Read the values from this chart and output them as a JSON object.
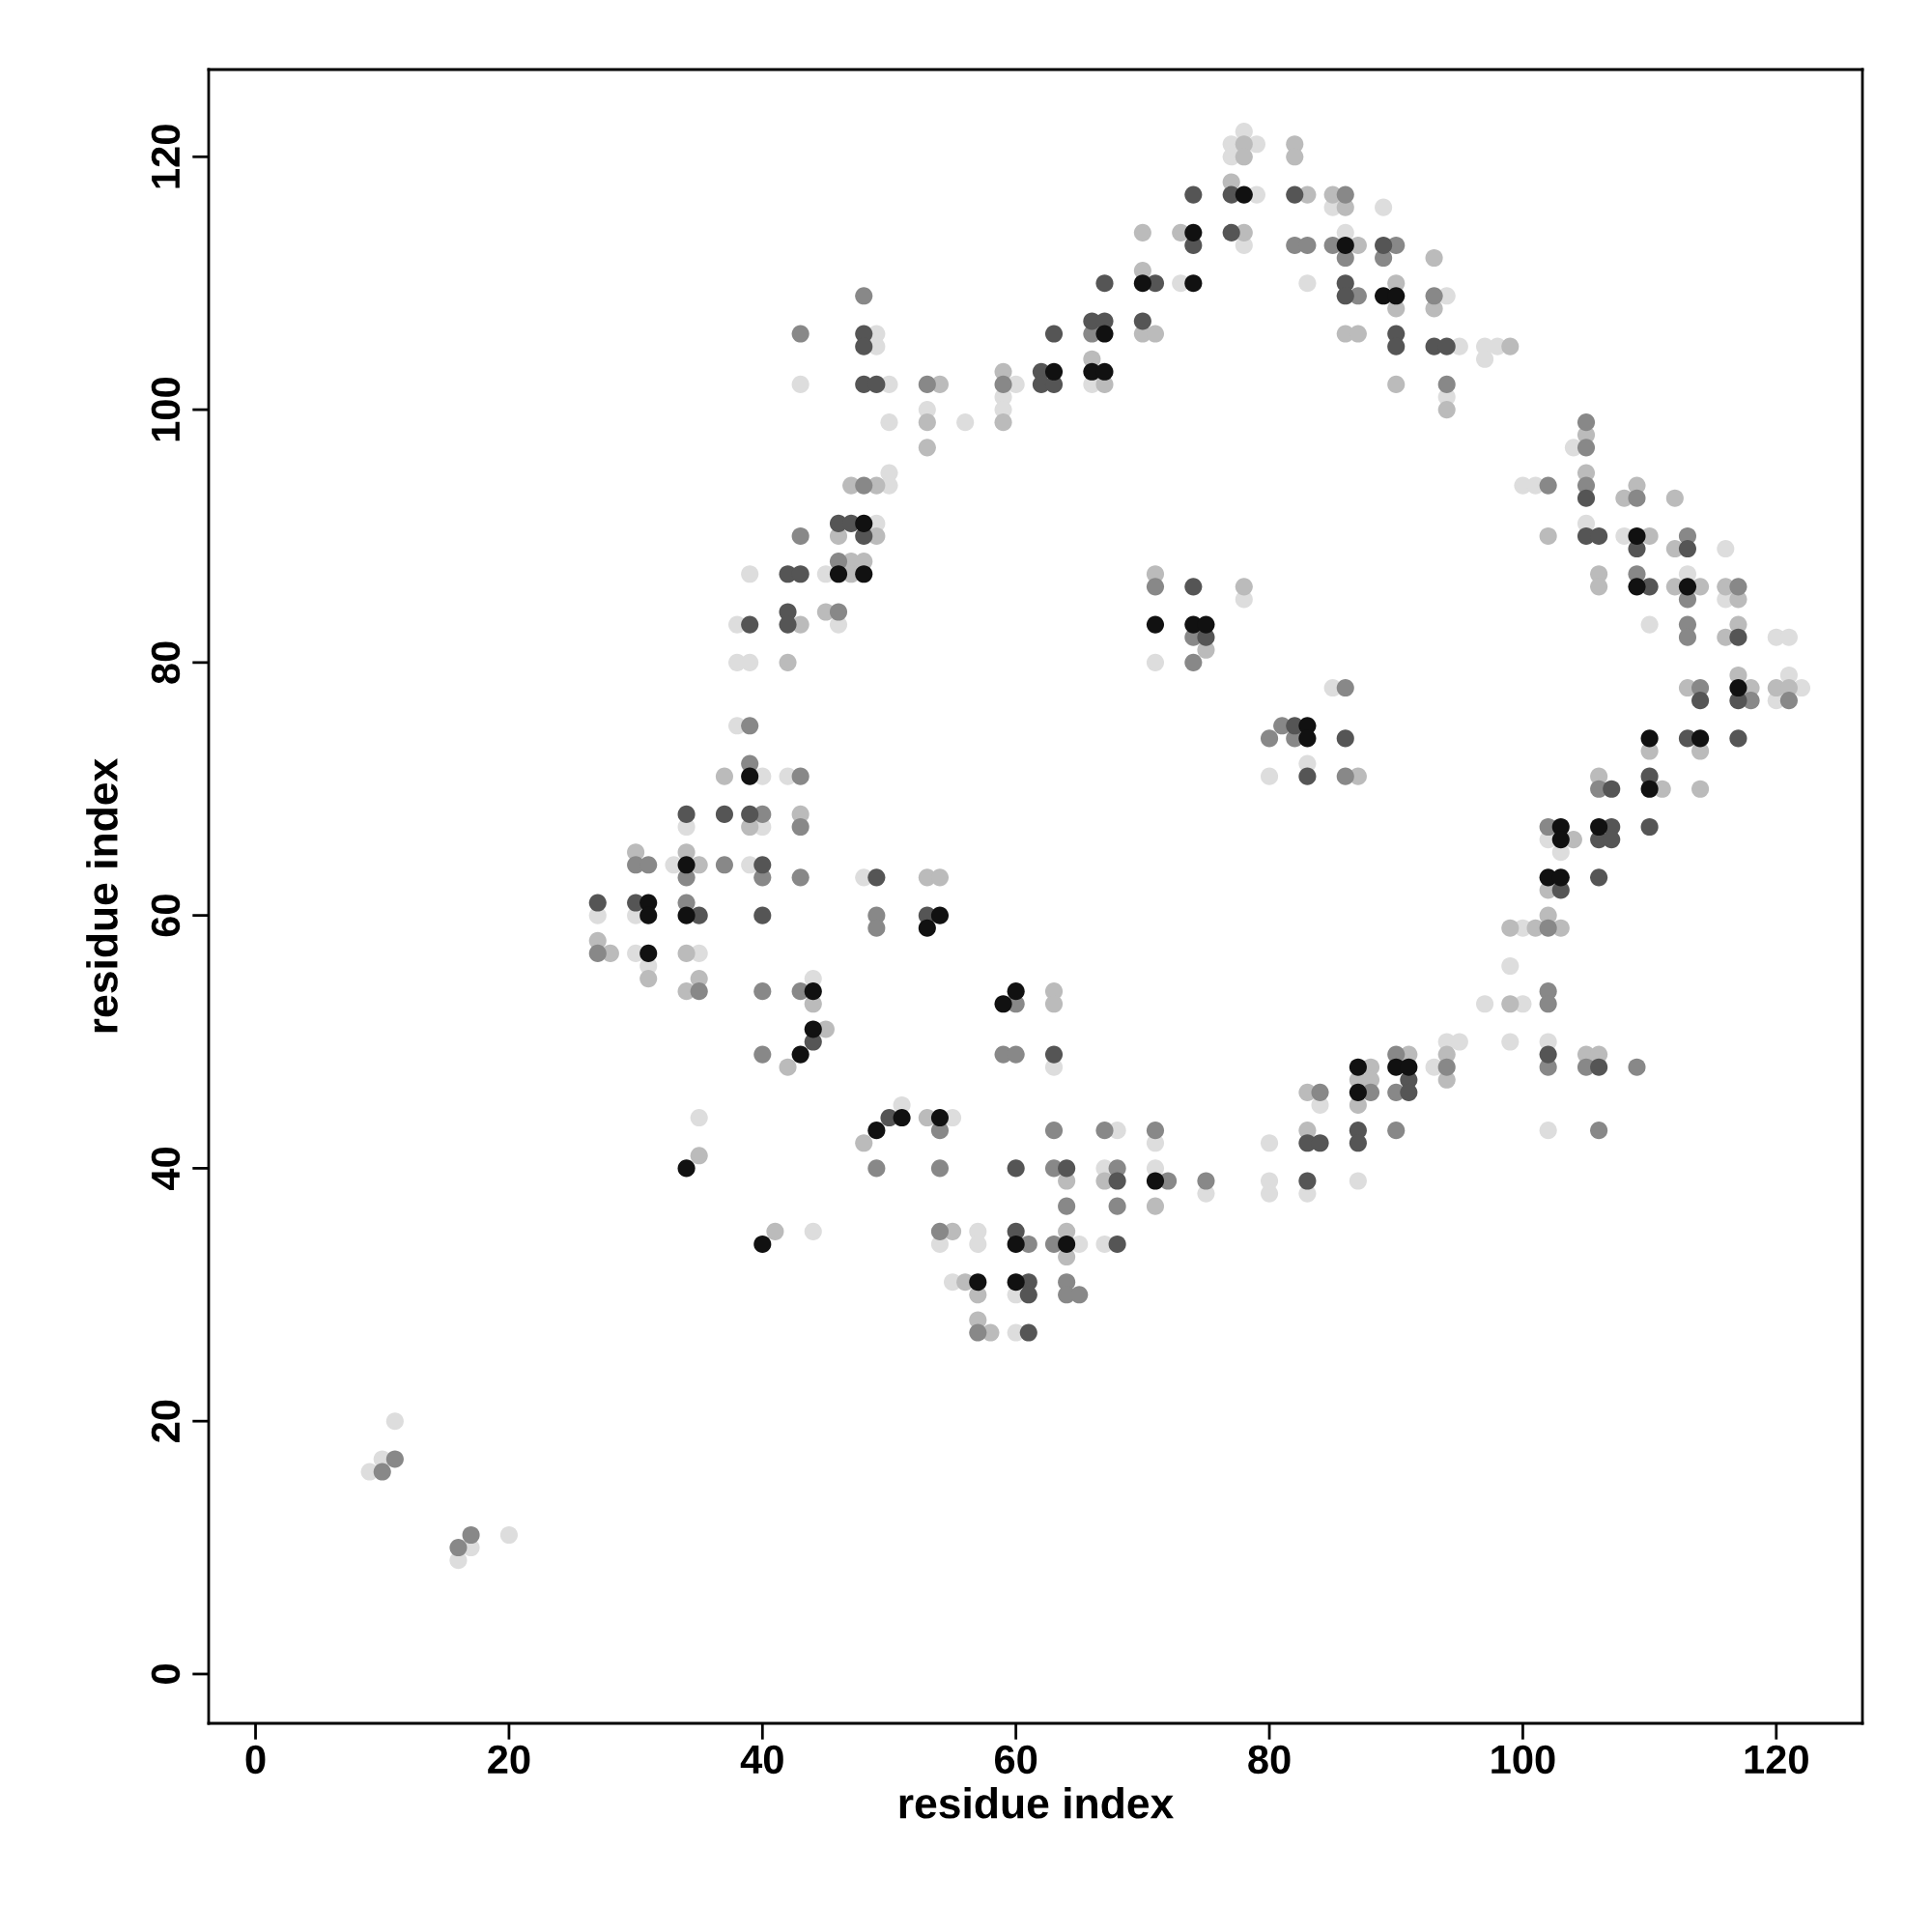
{
  "chart_data": {
    "type": "scatter",
    "xlabel": "residue index",
    "ylabel": "residue index",
    "xlim": [
      -3.7,
      126.8
    ],
    "ylim": [
      -3.9,
      126.9
    ],
    "xticks": [
      0,
      20,
      40,
      60,
      80,
      100,
      120
    ],
    "yticks": [
      0,
      20,
      40,
      60,
      80,
      100,
      120
    ],
    "marker": "circle",
    "series": [
      {
        "color": "#dddddd",
        "x": [
          9,
          10,
          11,
          16,
          17,
          20,
          27,
          30,
          30,
          31,
          33,
          34,
          35,
          35,
          38,
          38,
          38,
          39,
          39,
          39,
          40,
          40,
          42,
          43,
          44,
          44,
          45,
          46,
          48,
          49,
          49,
          49,
          50,
          50,
          50,
          50,
          51,
          53,
          54,
          55,
          55,
          56,
          57,
          57,
          59,
          59,
          60,
          60,
          60,
          63,
          65,
          66,
          67,
          67,
          68,
          71,
          71,
          71,
          73,
          75,
          77,
          77,
          78,
          78,
          78,
          79,
          79,
          80,
          80,
          80,
          80,
          83,
          83,
          83,
          84,
          85,
          85,
          86,
          87,
          89,
          93,
          94,
          94,
          94,
          95,
          95,
          97,
          97,
          97,
          98,
          99,
          99,
          100,
          100,
          100,
          101,
          102,
          102,
          102,
          103,
          104,
          105,
          108,
          110,
          113,
          116,
          116,
          120,
          120,
          121,
          121,
          122
        ],
        "values": [
          16,
          17,
          20,
          9,
          10,
          11,
          60,
          60,
          57,
          56,
          64,
          67,
          57,
          44,
          75,
          83,
          80,
          87,
          80,
          64,
          71,
          67,
          71,
          102,
          55,
          35,
          87,
          83,
          63,
          106,
          105,
          91,
          102,
          99,
          95,
          94,
          45,
          100,
          34,
          44,
          31,
          99,
          35,
          34,
          101,
          100,
          102,
          30,
          27,
          48,
          34,
          102,
          40,
          34,
          43,
          80,
          42,
          40,
          110,
          38,
          121,
          120,
          122,
          113,
          85,
          121,
          117,
          71,
          42,
          39,
          38,
          110,
          72,
          38,
          45,
          116,
          78,
          114,
          39,
          116,
          48,
          109,
          101,
          50,
          50,
          105,
          105,
          104,
          53,
          105,
          56,
          50,
          94,
          59,
          53,
          94,
          66,
          50,
          43,
          65,
          97,
          91,
          90,
          83,
          87,
          89,
          85,
          82,
          77,
          82,
          79,
          78
        ]
      },
      {
        "color": "#bbbbbb",
        "x": [
          27,
          28,
          30,
          31,
          34,
          34,
          34,
          35,
          35,
          35,
          37,
          39,
          41,
          42,
          42,
          43,
          43,
          44,
          45,
          45,
          46,
          47,
          47,
          47,
          48,
          48,
          49,
          49,
          53,
          53,
          53,
          53,
          54,
          54,
          55,
          56,
          57,
          57,
          58,
          59,
          59,
          63,
          63,
          64,
          64,
          64,
          66,
          67,
          67,
          70,
          70,
          70,
          71,
          71,
          71,
          73,
          75,
          77,
          78,
          78,
          78,
          78,
          82,
          82,
          83,
          83,
          83,
          85,
          86,
          86,
          87,
          87,
          87,
          87,
          87,
          88,
          88,
          90,
          90,
          90,
          91,
          93,
          93,
          94,
          94,
          94,
          99,
          99,
          99,
          101,
          102,
          102,
          102,
          103,
          104,
          105,
          105,
          105,
          106,
          106,
          106,
          106,
          108,
          109,
          110,
          110,
          111,
          112,
          112,
          112,
          113,
          114,
          114,
          114,
          116,
          116,
          117,
          117,
          117,
          118,
          120,
          121
        ],
        "values": [
          58,
          57,
          65,
          55,
          65,
          57,
          54,
          64,
          55,
          41,
          71,
          67,
          35,
          80,
          48,
          83,
          68,
          53,
          51,
          84,
          90,
          94,
          88,
          87,
          88,
          42,
          94,
          90,
          99,
          97,
          63,
          44,
          102,
          63,
          35,
          31,
          30,
          28,
          27,
          103,
          99,
          54,
          53,
          39,
          35,
          33,
          104,
          102,
          39,
          114,
          111,
          106,
          106,
          87,
          37,
          114,
          81,
          118,
          121,
          120,
          114,
          86,
          121,
          120,
          117,
          46,
          43,
          117,
          116,
          106,
          113,
          106,
          71,
          47,
          45,
          48,
          47,
          110,
          108,
          102,
          49,
          112,
          108,
          100,
          49,
          47,
          105,
          59,
          53,
          59,
          90,
          62,
          60,
          59,
          66,
          98,
          95,
          49,
          87,
          86,
          71,
          49,
          93,
          94,
          90,
          73,
          70,
          93,
          89,
          86,
          78,
          86,
          73,
          70,
          86,
          82,
          85,
          83,
          79,
          78,
          78,
          78
        ]
      },
      {
        "color": "#888888",
        "x": [
          10,
          11,
          16,
          17,
          27,
          30,
          31,
          34,
          34,
          35,
          37,
          39,
          39,
          40,
          40,
          40,
          40,
          43,
          43,
          43,
          43,
          43,
          43,
          46,
          46,
          48,
          48,
          49,
          49,
          49,
          53,
          54,
          54,
          54,
          57,
          59,
          59,
          60,
          60,
          61,
          63,
          63,
          63,
          64,
          64,
          64,
          65,
          66,
          67,
          68,
          68,
          71,
          71,
          72,
          74,
          74,
          75,
          80,
          81,
          82,
          82,
          83,
          84,
          85,
          86,
          86,
          86,
          86,
          87,
          88,
          89,
          90,
          90,
          90,
          90,
          93,
          94,
          94,
          102,
          102,
          102,
          102,
          102,
          102,
          105,
          105,
          105,
          105,
          106,
          106,
          109,
          109,
          109,
          113,
          113,
          113,
          113,
          114,
          117,
          118,
          121
        ],
        "values": [
          16,
          17,
          10,
          11,
          57,
          64,
          64,
          63,
          61,
          54,
          64,
          75,
          72,
          68,
          63,
          54,
          49,
          106,
          90,
          71,
          67,
          63,
          54,
          88,
          84,
          109,
          94,
          60,
          59,
          40,
          102,
          43,
          40,
          35,
          27,
          102,
          49,
          53,
          49,
          34,
          43,
          40,
          34,
          37,
          31,
          30,
          30,
          106,
          43,
          40,
          37,
          86,
          43,
          39,
          82,
          80,
          39,
          74,
          75,
          113,
          74,
          113,
          46,
          113,
          117,
          112,
          78,
          71,
          109,
          46,
          112,
          113,
          49,
          46,
          43,
          109,
          102,
          48,
          94,
          67,
          59,
          54,
          53,
          48,
          99,
          97,
          94,
          48,
          70,
          43,
          93,
          87,
          48,
          90,
          85,
          83,
          82,
          78,
          86,
          77,
          77
        ]
      },
      {
        "color": "#555555",
        "x": [
          27,
          30,
          34,
          35,
          37,
          39,
          39,
          40,
          40,
          42,
          42,
          42,
          43,
          44,
          46,
          47,
          48,
          48,
          48,
          48,
          49,
          49,
          50,
          53,
          60,
          60,
          61,
          61,
          61,
          62,
          62,
          63,
          63,
          63,
          64,
          66,
          67,
          67,
          68,
          68,
          70,
          71,
          74,
          74,
          74,
          75,
          77,
          77,
          82,
          82,
          83,
          83,
          83,
          84,
          86,
          86,
          86,
          87,
          87,
          89,
          90,
          90,
          91,
          91,
          93,
          94,
          102,
          103,
          105,
          105,
          106,
          106,
          106,
          106,
          107,
          107,
          107,
          109,
          110,
          110,
          110,
          113,
          113,
          114,
          117,
          117,
          117
        ],
        "values": [
          61,
          61,
          68,
          60,
          68,
          83,
          68,
          64,
          60,
          87,
          84,
          83,
          87,
          50,
          91,
          91,
          106,
          105,
          102,
          90,
          102,
          63,
          44,
          60,
          40,
          35,
          31,
          30,
          27,
          103,
          102,
          106,
          102,
          49,
          40,
          107,
          110,
          107,
          39,
          34,
          107,
          110,
          117,
          113,
          86,
          82,
          117,
          114,
          117,
          75,
          71,
          42,
          39,
          42,
          110,
          109,
          74,
          43,
          42,
          113,
          106,
          105,
          47,
          46,
          105,
          105,
          49,
          62,
          93,
          90,
          90,
          66,
          63,
          48,
          70,
          67,
          66,
          89,
          86,
          71,
          67,
          89,
          74,
          77,
          82,
          77,
          74
        ]
      },
      {
        "color": "#111111",
        "x": [
          31,
          31,
          31,
          34,
          34,
          34,
          39,
          40,
          43,
          44,
          44,
          46,
          48,
          48,
          49,
          51,
          53,
          54,
          54,
          57,
          59,
          60,
          60,
          60,
          63,
          64,
          66,
          67,
          67,
          70,
          71,
          71,
          74,
          74,
          74,
          75,
          78,
          83,
          83,
          86,
          87,
          87,
          89,
          90,
          90,
          91,
          102,
          103,
          103,
          103,
          106,
          109,
          109,
          110,
          110,
          113,
          114,
          117
        ],
        "values": [
          61,
          60,
          57,
          64,
          60,
          40,
          71,
          34,
          49,
          54,
          51,
          87,
          91,
          87,
          43,
          44,
          59,
          60,
          44,
          31,
          53,
          54,
          34,
          31,
          103,
          34,
          103,
          106,
          103,
          110,
          83,
          39,
          114,
          110,
          83,
          83,
          117,
          75,
          74,
          113,
          48,
          46,
          109,
          109,
          48,
          48,
          63,
          67,
          66,
          63,
          67,
          90,
          86,
          74,
          70,
          86,
          74,
          78
        ]
      }
    ]
  }
}
